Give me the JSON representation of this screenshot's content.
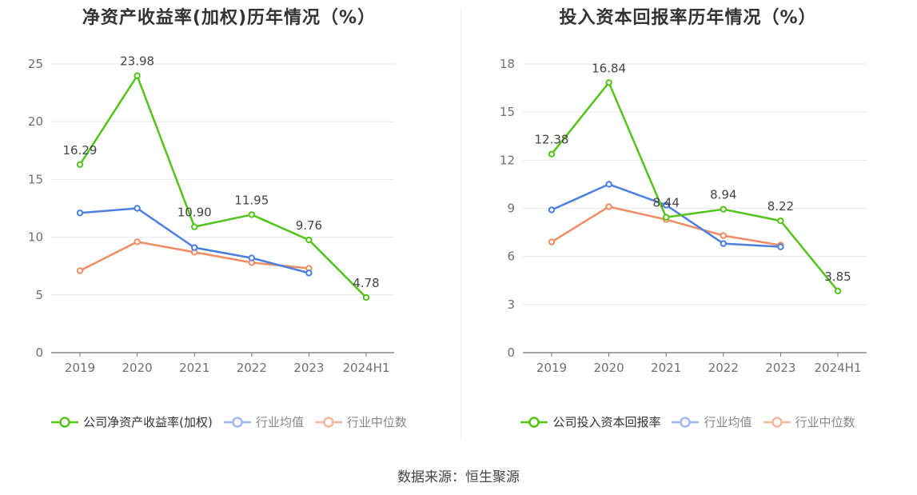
{
  "source": "数据来源：恒生聚源",
  "colors": {
    "company": "#52c41a",
    "average": "#4a7ee0",
    "median": "#f28c62"
  },
  "chart_data": [
    {
      "type": "line",
      "title": "净资产收益率(加权)历年情况（%）",
      "categories": [
        "2019",
        "2020",
        "2021",
        "2022",
        "2023",
        "2024H1"
      ],
      "ylim": [
        0,
        25
      ],
      "yticks": [
        "0",
        "5",
        "10",
        "15",
        "20",
        "25"
      ],
      "ytick_values": [
        0,
        5,
        10,
        15,
        20,
        25
      ],
      "grid": true,
      "legend_position": "bottom",
      "series": [
        {
          "name": "公司净资产收益率(加权)",
          "values": [
            16.29,
            23.98,
            10.9,
            11.95,
            9.76,
            4.78
          ],
          "labels": [
            "16.29",
            "23.98",
            "10.90",
            "11.95",
            "9.76",
            "4.78"
          ]
        },
        {
          "name": "行业均值",
          "values": [
            12.1,
            12.5,
            9.1,
            8.2,
            6.9,
            null
          ]
        },
        {
          "name": "行业中位数",
          "values": [
            7.1,
            9.6,
            8.7,
            7.8,
            7.3,
            null
          ]
        }
      ]
    },
    {
      "type": "line",
      "title": "投入资本回报率历年情况（%）",
      "categories": [
        "2019",
        "2020",
        "2021",
        "2022",
        "2023",
        "2024H1"
      ],
      "ylim": [
        0,
        18
      ],
      "yticks": [
        "0",
        "3",
        "6",
        "9",
        "12",
        "15",
        "18"
      ],
      "ytick_values": [
        0,
        3,
        6,
        9,
        12,
        15,
        18
      ],
      "grid": true,
      "legend_position": "bottom",
      "series": [
        {
          "name": "公司投入资本回报率",
          "values": [
            12.38,
            16.84,
            8.44,
            8.94,
            8.22,
            3.85
          ],
          "labels": [
            "12.38",
            "16.84",
            "8.44",
            "8.94",
            "8.22",
            "3.85"
          ]
        },
        {
          "name": "行业均值",
          "values": [
            8.9,
            10.5,
            9.2,
            6.8,
            6.6,
            null
          ]
        },
        {
          "name": "行业中位数",
          "values": [
            6.9,
            9.1,
            8.3,
            7.3,
            6.7,
            null
          ]
        }
      ]
    }
  ]
}
